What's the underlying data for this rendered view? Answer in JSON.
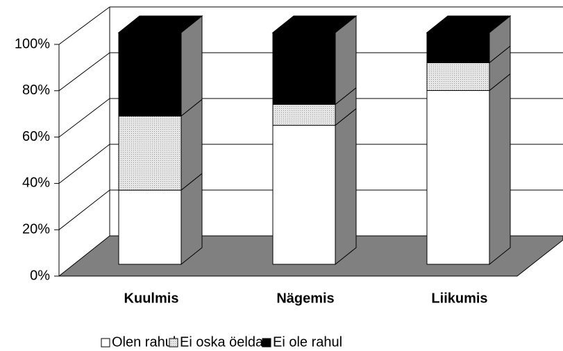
{
  "chart_data": {
    "type": "bar3d_stacked",
    "categories": [
      "Kuulmis",
      "Nägemis",
      "Liikumis"
    ],
    "series": [
      {
        "name": "Olen rahul",
        "color": "#ffffff",
        "values": [
          32,
          60,
          75
        ]
      },
      {
        "name": "Ei oska öelda",
        "color": "#d9d9d9",
        "values": [
          32,
          9,
          12
        ]
      },
      {
        "name": "Ei ole rahul",
        "color": "#000000",
        "values": [
          36,
          31,
          13
        ]
      }
    ],
    "ylim": [
      0,
      100
    ],
    "yticks": [
      {
        "value": 0,
        "label": "0%"
      },
      {
        "value": 20,
        "label": "20%"
      },
      {
        "value": 40,
        "label": "40%"
      },
      {
        "value": 60,
        "label": "60%"
      },
      {
        "value": 80,
        "label": "80%"
      },
      {
        "value": 100,
        "label": "100%"
      }
    ],
    "grid": true
  }
}
